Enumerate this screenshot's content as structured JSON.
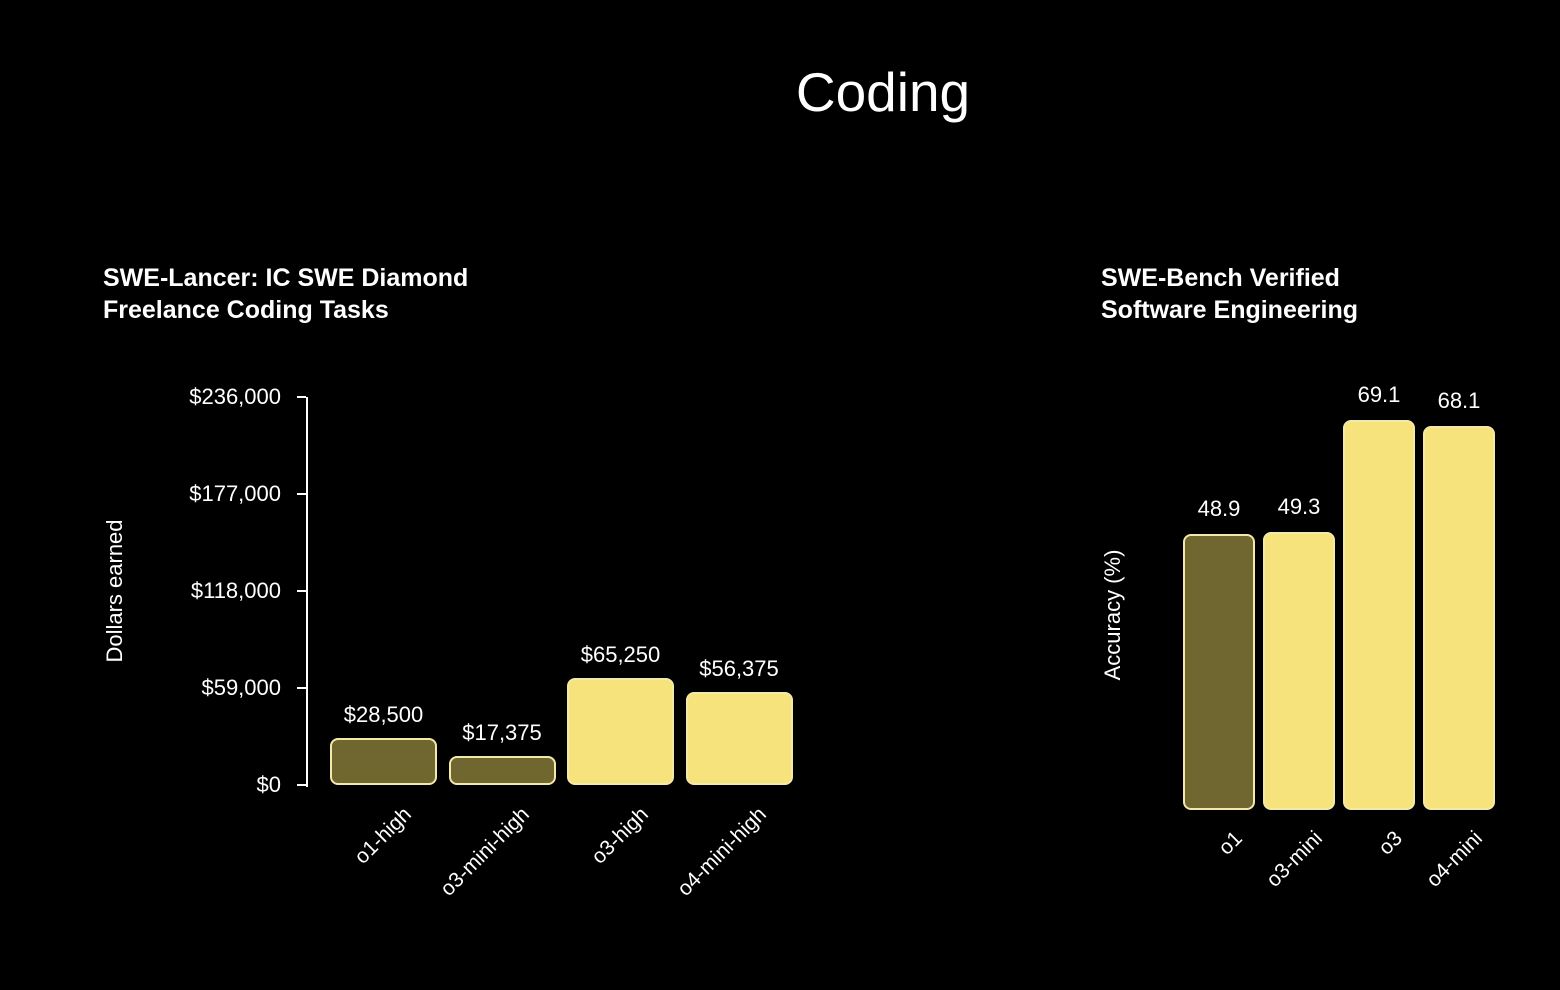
{
  "page": {
    "title": "Coding",
    "background": "#000000",
    "text_color": "#ffffff"
  },
  "chart_data": [
    {
      "type": "bar",
      "title": "SWE-Lancer: IC SWE Diamond Freelance Coding Tasks",
      "title_lines": [
        "SWE-Lancer: IC SWE Diamond",
        "Freelance Coding Tasks"
      ],
      "ylabel": "Dollars earned",
      "xlabel": "",
      "categories": [
        "o1-high",
        "o3-mini-high",
        "o3-high",
        "o4-mini-high"
      ],
      "values": [
        28500,
        17375,
        65250,
        56375
      ],
      "value_labels": [
        "$28,500",
        "$17,375",
        "$65,250",
        "$56,375"
      ],
      "ylim": [
        0,
        236000
      ],
      "yticks": [
        {
          "value": 0,
          "label": "$0"
        },
        {
          "value": 59000,
          "label": "$59,000"
        },
        {
          "value": 118000,
          "label": "$118,000"
        },
        {
          "value": 177000,
          "label": "$177,000"
        },
        {
          "value": 236000,
          "label": "$236,000"
        }
      ],
      "grid": false,
      "legend": false,
      "bar_colors": [
        "#6f6630",
        "#6f6630",
        "#f7e37b",
        "#f7e37b"
      ],
      "bar_border_color": "#f3e9a8"
    },
    {
      "type": "bar",
      "title": "SWE-Bench Verified Software Engineering",
      "title_lines": [
        "SWE-Bench Verified",
        "Software Engineering"
      ],
      "ylabel": "Accuracy (%)",
      "xlabel": "",
      "categories": [
        "o1",
        "o3-mini",
        "o3",
        "o4-mini"
      ],
      "values": [
        48.9,
        49.3,
        69.1,
        68.1
      ],
      "value_labels": [
        "48.9",
        "49.3",
        "69.1",
        "68.1"
      ],
      "ylim": [
        0,
        69.1
      ],
      "yticks": [],
      "grid": false,
      "legend": false,
      "bar_colors": [
        "#6f6630",
        "#f7e37b",
        "#f7e37b",
        "#f7e37b"
      ],
      "bar_border_color": "#f3e9a8"
    }
  ]
}
